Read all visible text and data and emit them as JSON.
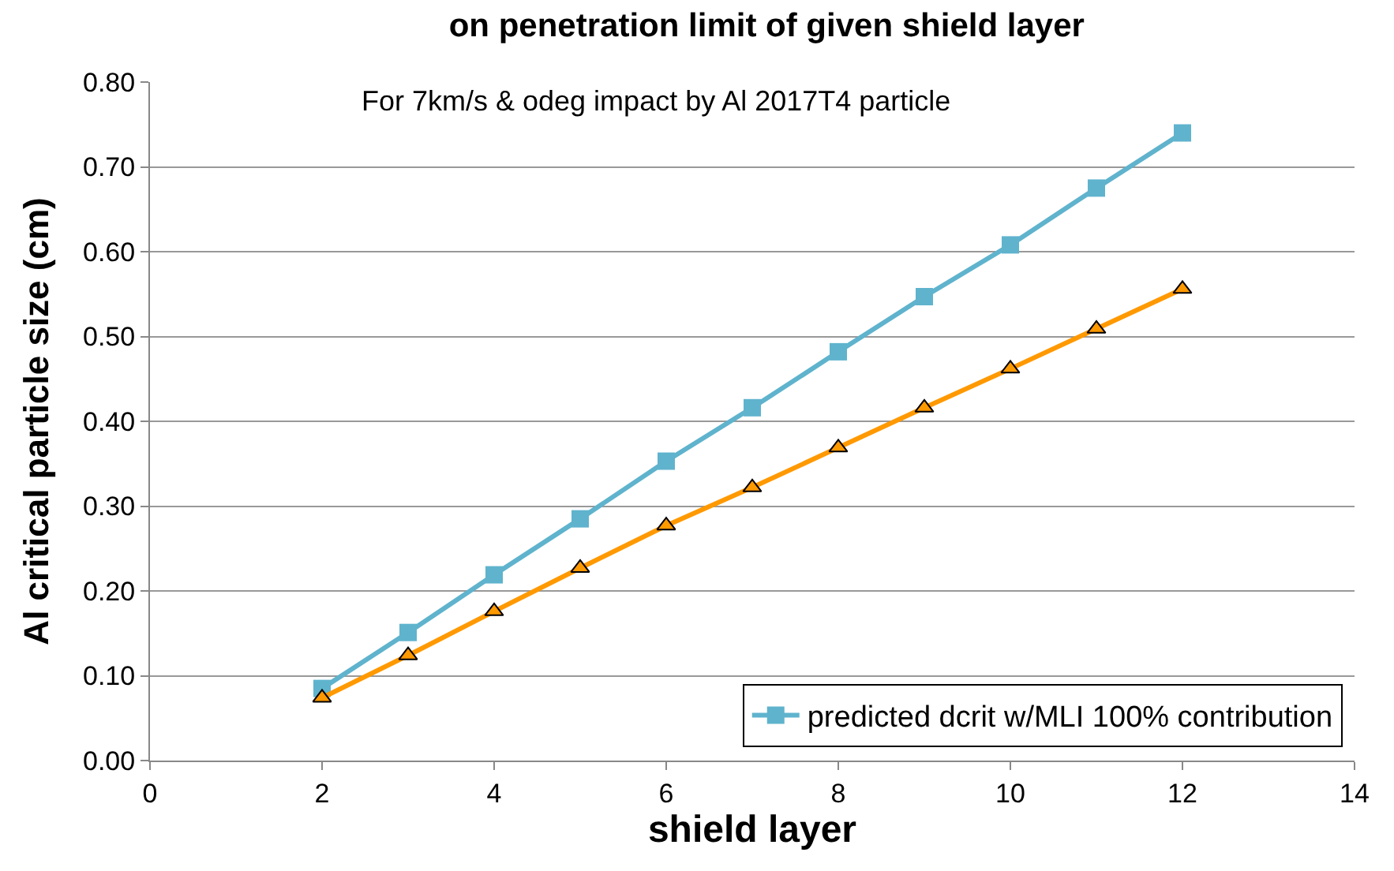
{
  "chart_data": {
    "type": "line",
    "title": "on penetration limit of given shield layer",
    "subtitle": "For 7km/s & odeg impact by Al 2017T4 particle",
    "xlabel": "shield layer",
    "ylabel": "Al critical particle size (cm)",
    "x": [
      2,
      3,
      4,
      5,
      6,
      7,
      8,
      9,
      10,
      11,
      12
    ],
    "series": [
      {
        "name": "predicted dcrit w/MLI 100% contribution",
        "color": "#5fb3cd",
        "marker": "square",
        "values": [
          0.085,
          0.151,
          0.219,
          0.285,
          0.353,
          0.416,
          0.482,
          0.547,
          0.608,
          0.675,
          0.74
        ]
      },
      {
        "color": "#ff9900",
        "marker": "triangle",
        "values": [
          0.074,
          0.124,
          0.176,
          0.227,
          0.277,
          0.322,
          0.369,
          0.416,
          0.462,
          0.509,
          0.556
        ]
      }
    ],
    "xlim": [
      0,
      14
    ],
    "xticks": [
      0,
      2,
      4,
      6,
      8,
      10,
      12,
      14
    ],
    "ylim": [
      0,
      0.8
    ],
    "yticks": [
      {
        "value": 0,
        "label": "0.00"
      },
      {
        "value": 0.1,
        "label": "0.10"
      },
      {
        "value": 0.2,
        "label": "0.20"
      },
      {
        "value": 0.3,
        "label": "0.30"
      },
      {
        "value": 0.4,
        "label": "0.40"
      },
      {
        "value": 0.5,
        "label": "0.50"
      },
      {
        "value": 0.6,
        "label": "0.60"
      },
      {
        "value": 0.7,
        "label": "0.70"
      },
      {
        "value": 0.8,
        "label": "0.80"
      }
    ],
    "grid": "y",
    "legend": "bottom right",
    "line_style": "solid"
  }
}
